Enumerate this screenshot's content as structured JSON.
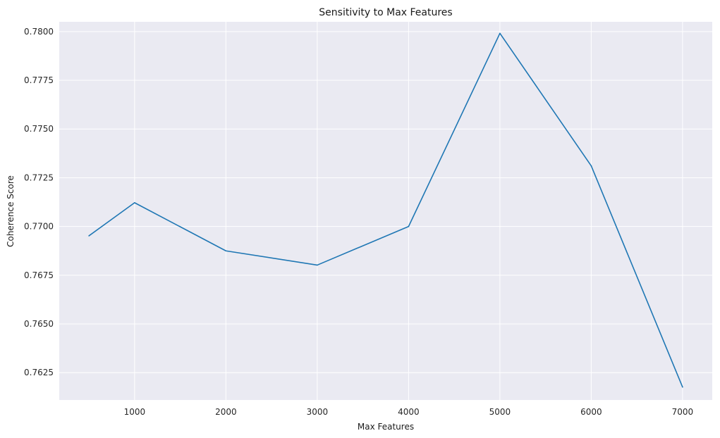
{
  "chart_data": {
    "type": "line",
    "title": "Sensitivity to Max Features",
    "xlabel": "Max Features",
    "ylabel": "Coherence Score",
    "x": [
      500,
      1000,
      2000,
      3000,
      4000,
      5000,
      6000,
      7000
    ],
    "series": [
      {
        "values": [
          0.76952,
          0.77122,
          0.76875,
          0.76802,
          0.77,
          0.77991,
          0.77311,
          0.76176
        ]
      }
    ],
    "xlim": [
      175,
      7325
    ],
    "ylim": [
      0.7611,
      0.7805
    ],
    "xticks": [
      1000,
      2000,
      3000,
      4000,
      5000,
      6000,
      7000
    ],
    "yticks": [
      0.7625,
      0.765,
      0.7675,
      0.77,
      0.7725,
      0.775,
      0.7775,
      0.78
    ],
    "xtick_labels": [
      "1000",
      "2000",
      "3000",
      "4000",
      "5000",
      "6000",
      "7000"
    ],
    "ytick_labels": [
      "0.7625",
      "0.7650",
      "0.7675",
      "0.7700",
      "0.7725",
      "0.7750",
      "0.7775",
      "0.7800"
    ],
    "grid": true,
    "colors": {
      "background": "#eaeaf2",
      "grid": "#ffffff",
      "line": "#1f77b4"
    }
  }
}
